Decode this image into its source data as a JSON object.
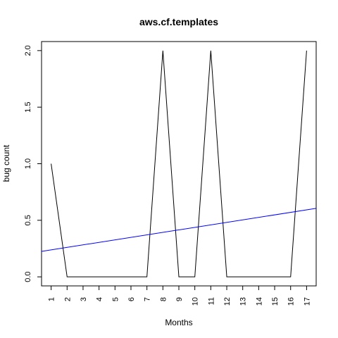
{
  "chart_data": {
    "type": "line",
    "title": "aws.cf.templates",
    "xlabel": "Months",
    "ylabel": "bug count",
    "x": [
      1,
      2,
      3,
      4,
      5,
      6,
      7,
      8,
      9,
      10,
      11,
      12,
      13,
      14,
      15,
      16,
      17
    ],
    "x_tick_labels": [
      "1",
      "2",
      "3",
      "4",
      "5",
      "6",
      "7",
      "8",
      "9",
      "10",
      "11",
      "12",
      "13",
      "14",
      "15",
      "16",
      "17"
    ],
    "series": [
      {
        "values": [
          1,
          0,
          0,
          0,
          0,
          0,
          0,
          2,
          0,
          0,
          2,
          0,
          0,
          0,
          0,
          0,
          2
        ],
        "color": "#000000"
      }
    ],
    "trend_line": {
      "color": "#0000ff",
      "intercept": 0.2163,
      "slope": 0.0221
    },
    "xlim": [
      0.4,
      17.6
    ],
    "ylim": [
      -0.08,
      2.08
    ],
    "y_ticks": [
      0.0,
      0.5,
      1.0,
      1.5,
      2.0
    ],
    "y_tick_labels": [
      "0.0",
      "0.5",
      "1.0",
      "1.5",
      "2.0"
    ],
    "grid": false,
    "legend": "none"
  }
}
